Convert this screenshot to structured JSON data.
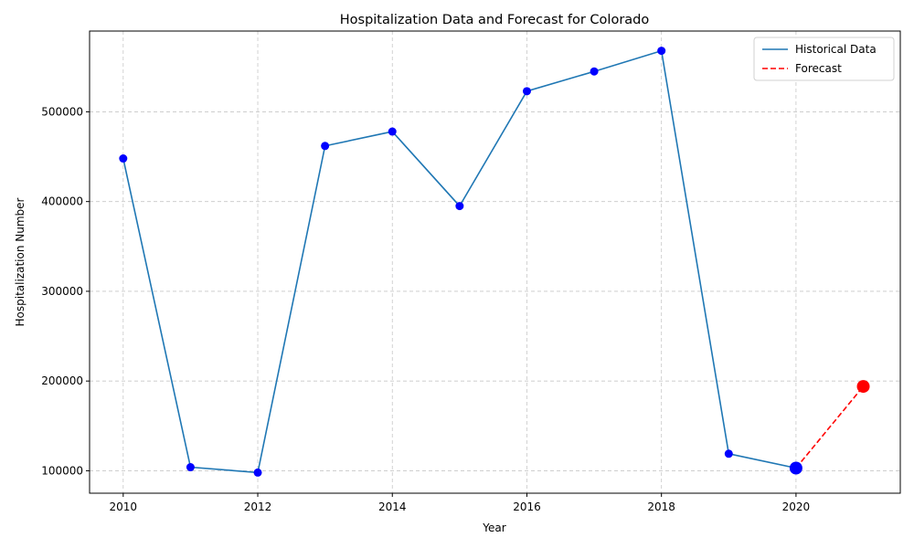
{
  "chart_data": {
    "type": "line",
    "title": "Hospitalization Data and Forecast for Colorado",
    "xlabel": "Year",
    "ylabel": "Hospitalization Number",
    "xlim": [
      2009.5,
      2021.55
    ],
    "ylim": [
      75000,
      590000
    ],
    "x_ticks": [
      2010,
      2012,
      2014,
      2016,
      2018,
      2020
    ],
    "y_ticks": [
      100000,
      200000,
      300000,
      400000,
      500000
    ],
    "grid": true,
    "legend_position": "top-right",
    "series": [
      {
        "name": "Historical Data",
        "style": "solid",
        "color": "#1f77b4",
        "marker_color": "#0000ff",
        "x": [
          2010,
          2011,
          2012,
          2013,
          2014,
          2015,
          2016,
          2017,
          2018,
          2019,
          2020
        ],
        "values": [
          448000,
          104000,
          98000,
          462000,
          478000,
          395000,
          523000,
          545000,
          568000,
          119000,
          103000
        ]
      },
      {
        "name": "Forecast",
        "style": "dashed",
        "color": "#ff0000",
        "marker_color": "#ff0000",
        "x": [
          2020,
          2021
        ],
        "values": [
          103000,
          194000
        ]
      }
    ],
    "highlight_points": [
      {
        "x": 2020,
        "y": 103000,
        "color": "#0000ff"
      },
      {
        "x": 2021,
        "y": 194000,
        "color": "#ff0000"
      }
    ]
  }
}
